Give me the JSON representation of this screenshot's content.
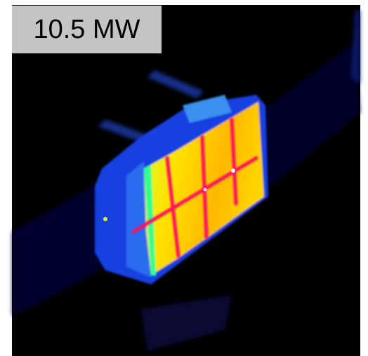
{
  "label": "10.5 MW"
}
